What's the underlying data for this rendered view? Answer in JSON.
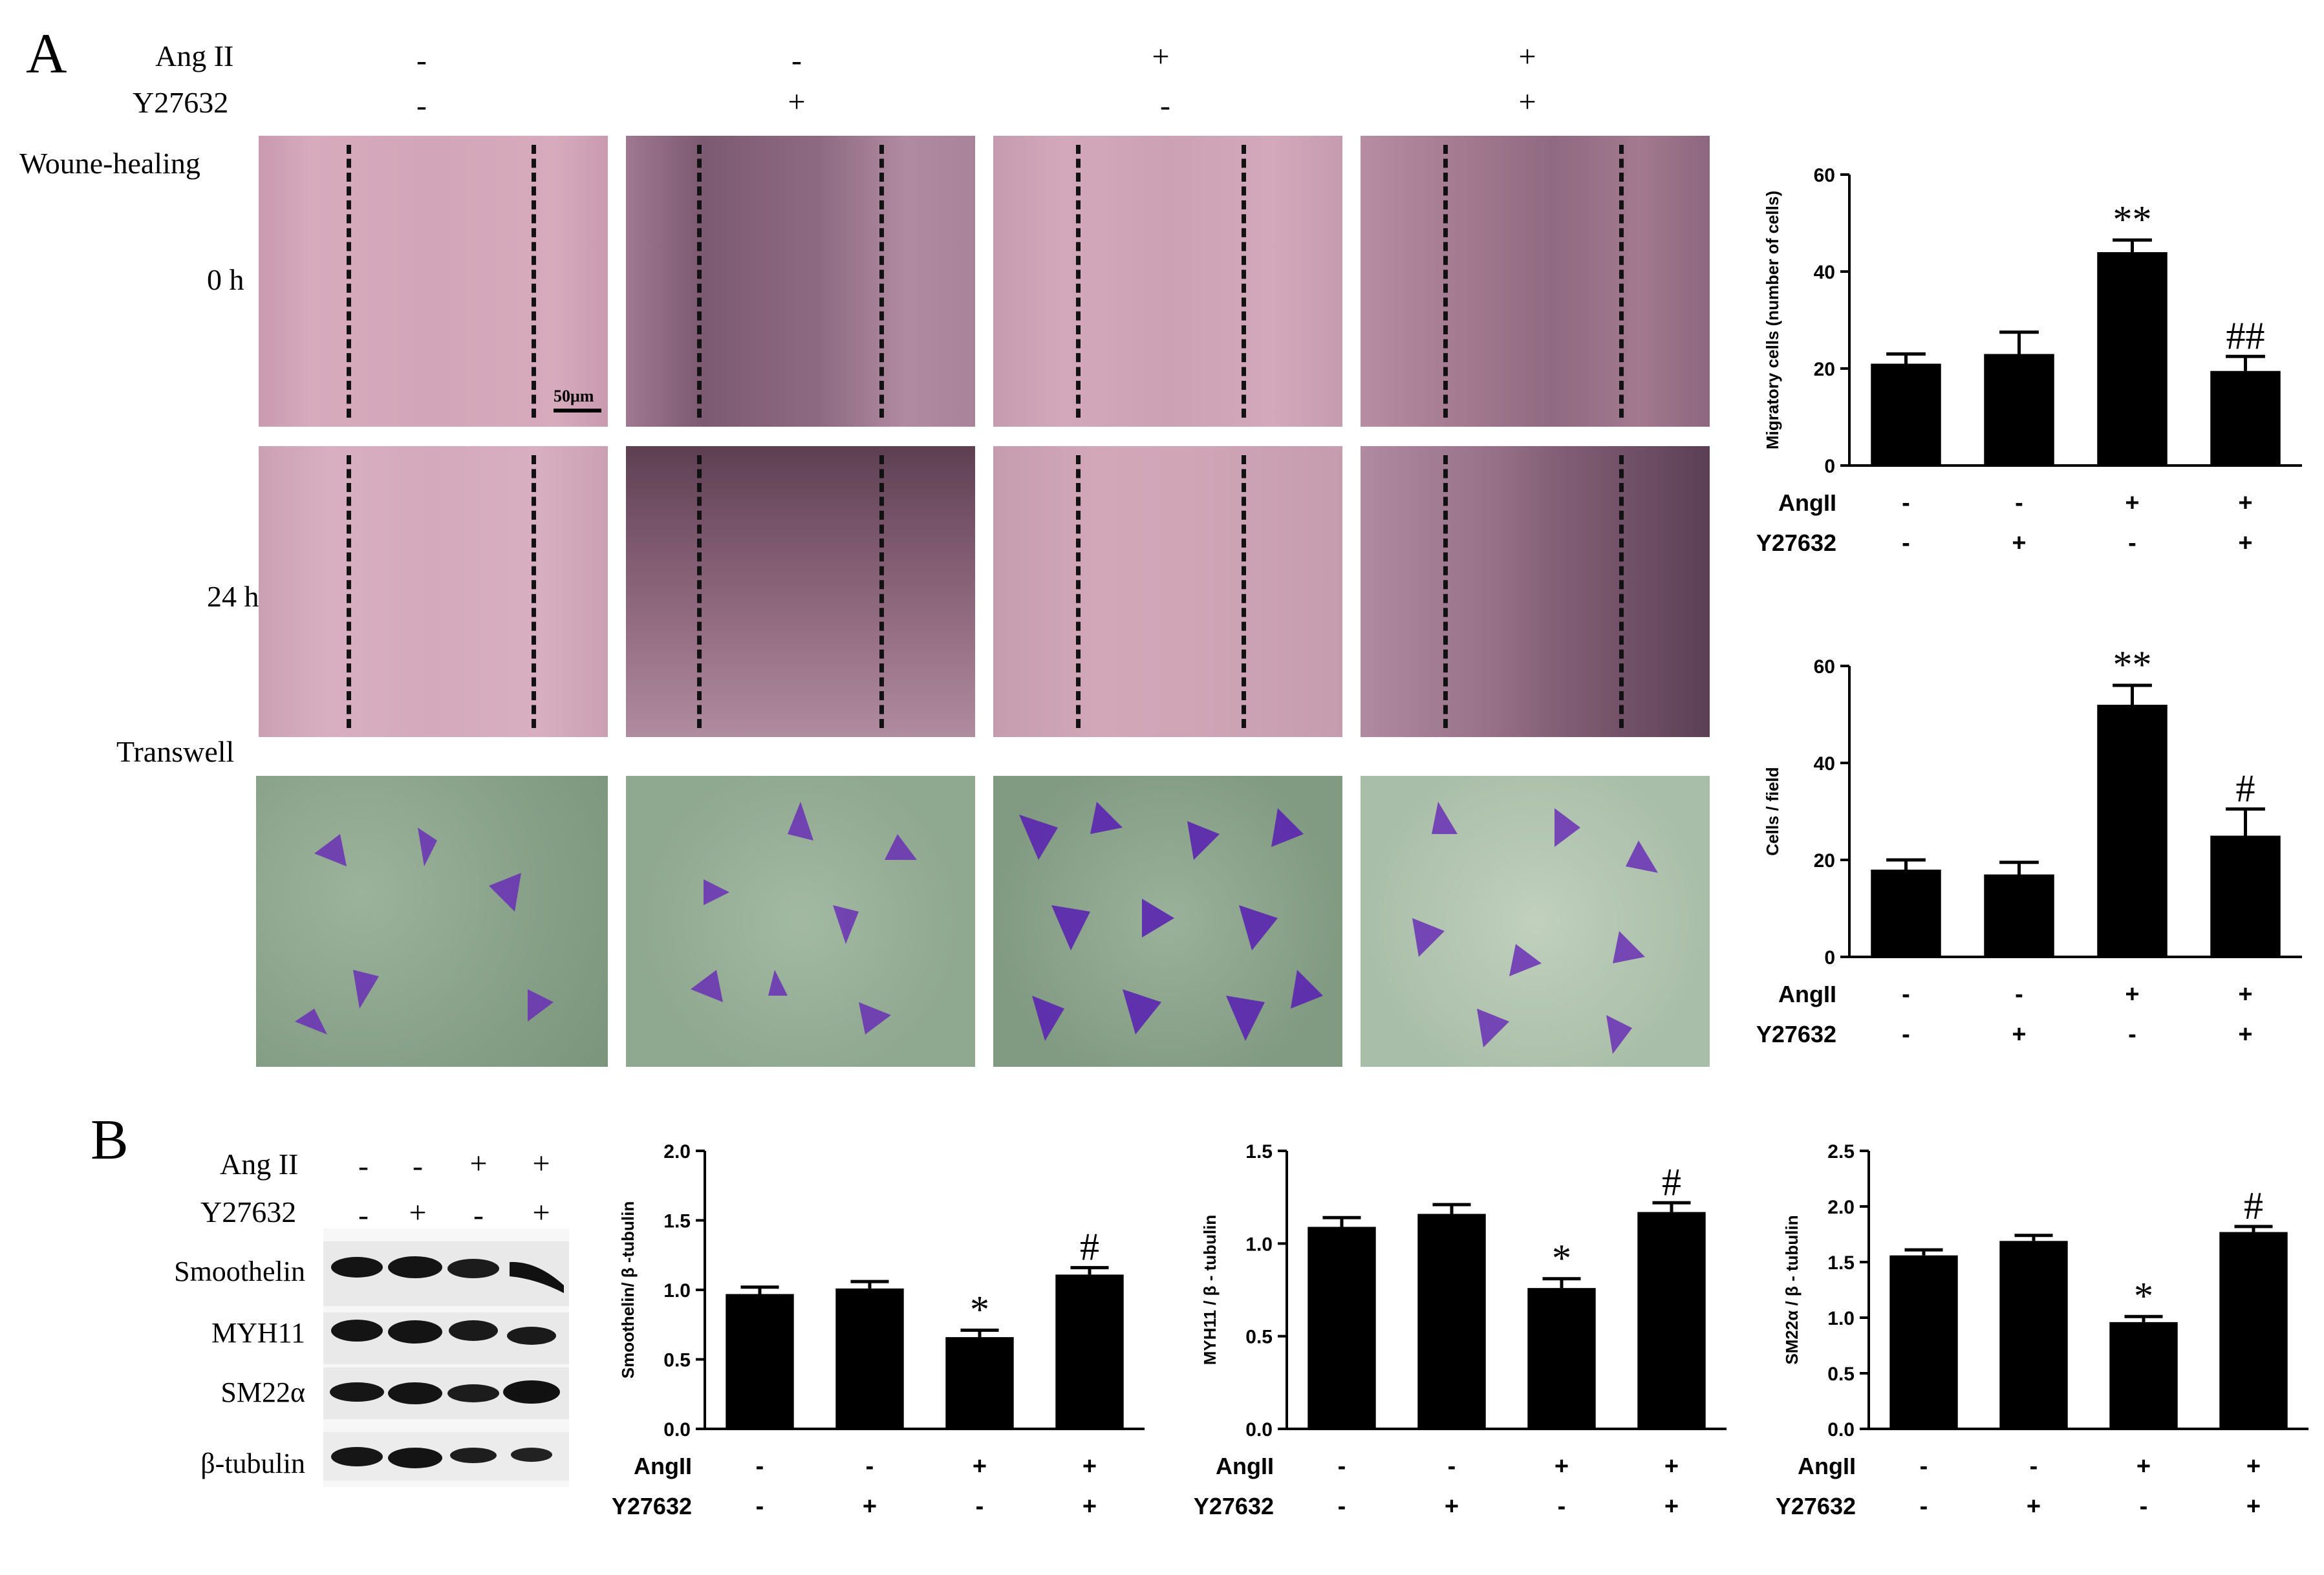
{
  "figure": {
    "panel_a_letter": "A",
    "panel_b_letter": "B",
    "panel_a": {
      "treatment_rows": [
        {
          "label": "Ang II",
          "signs": [
            "-",
            "-",
            "+",
            "+"
          ]
        },
        {
          "label": "Y27632",
          "signs": [
            "-",
            "+",
            "-",
            "+"
          ]
        }
      ],
      "row_labels": {
        "wound": "Woune-healing",
        "t0": "0 h",
        "t24": "24 h",
        "transwell": "Transwell"
      },
      "scale_bar": "50μm"
    },
    "panel_b": {
      "blot_treatment_rows": [
        {
          "label": "Ang II",
          "signs": [
            "-",
            "-",
            "+",
            "+"
          ]
        },
        {
          "label": "Y27632",
          "signs": [
            "-",
            "+",
            "-",
            "+"
          ]
        }
      ],
      "blot_labels": [
        "Smoothelin",
        "MYH11",
        "SM22α",
        "β-tubulin"
      ]
    },
    "colors": {
      "bar": "#000000",
      "wound_tissue": "#d6a5b8",
      "wound_gap": "#c79aae",
      "transwell_bg": "#8fa890",
      "stain": "#6a2fb5"
    }
  },
  "chart_data": [
    {
      "type": "bar",
      "title": "",
      "ylabel": "Migratory cells (number of cells)",
      "ylim": [
        0,
        60
      ],
      "yticks": [
        0,
        20,
        40,
        60
      ],
      "values": [
        21,
        23,
        44,
        19.5
      ],
      "errors": [
        2,
        4.5,
        2.5,
        3
      ],
      "annotations": [
        "",
        "",
        "**",
        "##"
      ],
      "conditions": [
        {
          "label": "AngII",
          "signs": [
            "-",
            "-",
            "+",
            "+"
          ]
        },
        {
          "label": "Y27632",
          "signs": [
            "-",
            "+",
            "-",
            "+"
          ]
        }
      ]
    },
    {
      "type": "bar",
      "title": "",
      "ylabel": "Cells / field",
      "ylim": [
        0,
        60
      ],
      "yticks": [
        0,
        20,
        40,
        60
      ],
      "values": [
        18,
        17,
        52,
        25
      ],
      "errors": [
        2,
        2.5,
        4,
        5.5
      ],
      "annotations": [
        "",
        "",
        "**",
        "#"
      ],
      "conditions": [
        {
          "label": "AngII",
          "signs": [
            "-",
            "-",
            "+",
            "+"
          ]
        },
        {
          "label": "Y27632",
          "signs": [
            "-",
            "+",
            "-",
            "+"
          ]
        }
      ]
    },
    {
      "type": "bar",
      "title": "",
      "ylabel": "Smoothelin/ β -tubulin",
      "ylim": [
        0,
        2.0
      ],
      "yticks": [
        0.0,
        0.5,
        1.0,
        1.5,
        2.0
      ],
      "tick_decimals": 1,
      "values": [
        0.97,
        1.01,
        0.66,
        1.11
      ],
      "errors": [
        0.05,
        0.05,
        0.05,
        0.05
      ],
      "annotations": [
        "",
        "",
        "*",
        "#"
      ],
      "conditions": [
        {
          "label": "AngII",
          "signs": [
            "-",
            "-",
            "+",
            "+"
          ]
        },
        {
          "label": "Y27632",
          "signs": [
            "-",
            "+",
            "-",
            "+"
          ]
        }
      ]
    },
    {
      "type": "bar",
      "title": "",
      "ylabel": "MYH11 / β - tubulin",
      "ylim": [
        0,
        1.5
      ],
      "yticks": [
        0.0,
        0.5,
        1.0,
        1.5
      ],
      "tick_decimals": 1,
      "values": [
        1.09,
        1.16,
        0.76,
        1.17
      ],
      "errors": [
        0.05,
        0.05,
        0.05,
        0.05
      ],
      "annotations": [
        "",
        "",
        "*",
        "#"
      ],
      "conditions": [
        {
          "label": "AngII",
          "signs": [
            "-",
            "-",
            "+",
            "+"
          ]
        },
        {
          "label": "Y27632",
          "signs": [
            "-",
            "+",
            "-",
            "+"
          ]
        }
      ]
    },
    {
      "type": "bar",
      "title": "",
      "ylabel": "SM22α / β - tubulin",
      "ylim": [
        0,
        2.5
      ],
      "yticks": [
        0.0,
        0.5,
        1.0,
        1.5,
        2.0,
        2.5
      ],
      "tick_decimals": 1,
      "values": [
        1.56,
        1.69,
        0.96,
        1.77
      ],
      "errors": [
        0.05,
        0.05,
        0.05,
        0.05
      ],
      "annotations": [
        "",
        "",
        "*",
        "#"
      ],
      "conditions": [
        {
          "label": "AngII",
          "signs": [
            "-",
            "-",
            "+",
            "+"
          ]
        },
        {
          "label": "Y27632",
          "signs": [
            "-",
            "+",
            "-",
            "+"
          ]
        }
      ]
    }
  ]
}
